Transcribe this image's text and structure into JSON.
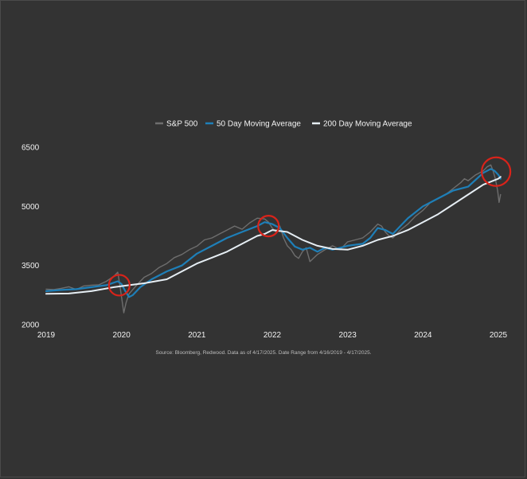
{
  "chart_data": {
    "type": "line",
    "title": "",
    "xlabel": "",
    "ylabel": "",
    "xlim": [
      2019,
      2025.05
    ],
    "ylim": [
      2000,
      6500
    ],
    "x_ticks": [
      "2019",
      "2020",
      "2021",
      "2022",
      "2023",
      "2024",
      "2025"
    ],
    "y_ticks": [
      "2000",
      "3500",
      "5000",
      "6500"
    ],
    "grid": false,
    "legend_position": "top",
    "source_note": "Source: Bloomberg, Redwood. Data as of 4/17/2025. Date Range from 4/16/2019 - 4/17/2025.",
    "series": [
      {
        "name": "S&P 500",
        "color": "#6e6e6e",
        "points": [
          [
            2019.0,
            2900
          ],
          [
            2019.1,
            2890
          ],
          [
            2019.2,
            2920
          ],
          [
            2019.3,
            2960
          ],
          [
            2019.4,
            2890
          ],
          [
            2019.5,
            2980
          ],
          [
            2019.6,
            3000
          ],
          [
            2019.7,
            3010
          ],
          [
            2019.8,
            3100
          ],
          [
            2019.9,
            3230
          ],
          [
            2019.95,
            3330
          ],
          [
            2019.97,
            3100
          ],
          [
            2020.0,
            2700
          ],
          [
            2020.03,
            2300
          ],
          [
            2020.06,
            2550
          ],
          [
            2020.1,
            2780
          ],
          [
            2020.2,
            3000
          ],
          [
            2020.3,
            3200
          ],
          [
            2020.4,
            3300
          ],
          [
            2020.5,
            3450
          ],
          [
            2020.6,
            3550
          ],
          [
            2020.7,
            3700
          ],
          [
            2020.8,
            3780
          ],
          [
            2020.9,
            3900
          ],
          [
            2021.0,
            3990
          ],
          [
            2021.1,
            4150
          ],
          [
            2021.2,
            4200
          ],
          [
            2021.3,
            4300
          ],
          [
            2021.4,
            4400
          ],
          [
            2021.5,
            4500
          ],
          [
            2021.6,
            4420
          ],
          [
            2021.7,
            4580
          ],
          [
            2021.8,
            4700
          ],
          [
            2021.9,
            4680
          ],
          [
            2021.95,
            4600
          ],
          [
            2022.0,
            4450
          ],
          [
            2022.05,
            4350
          ],
          [
            2022.1,
            4500
          ],
          [
            2022.15,
            4200
          ],
          [
            2022.2,
            4000
          ],
          [
            2022.25,
            3900
          ],
          [
            2022.3,
            3750
          ],
          [
            2022.35,
            3680
          ],
          [
            2022.4,
            3850
          ],
          [
            2022.45,
            3950
          ],
          [
            2022.5,
            3600
          ],
          [
            2022.6,
            3780
          ],
          [
            2022.7,
            3900
          ],
          [
            2022.8,
            4000
          ],
          [
            2022.9,
            3900
          ],
          [
            2023.0,
            4100
          ],
          [
            2023.1,
            4150
          ],
          [
            2023.2,
            4200
          ],
          [
            2023.3,
            4350
          ],
          [
            2023.4,
            4550
          ],
          [
            2023.45,
            4500
          ],
          [
            2023.5,
            4350
          ],
          [
            2023.55,
            4250
          ],
          [
            2023.6,
            4200
          ],
          [
            2023.7,
            4400
          ],
          [
            2023.8,
            4550
          ],
          [
            2023.9,
            4750
          ],
          [
            2024.0,
            4900
          ],
          [
            2024.1,
            5100
          ],
          [
            2024.2,
            5200
          ],
          [
            2024.3,
            5300
          ],
          [
            2024.4,
            5450
          ],
          [
            2024.5,
            5600
          ],
          [
            2024.55,
            5700
          ],
          [
            2024.6,
            5650
          ],
          [
            2024.7,
            5800
          ],
          [
            2024.8,
            5900
          ],
          [
            2024.85,
            6000
          ],
          [
            2024.9,
            6050
          ],
          [
            2024.93,
            5900
          ],
          [
            2024.96,
            5700
          ],
          [
            2024.99,
            5400
          ],
          [
            2025.01,
            5100
          ],
          [
            2025.03,
            5300
          ]
        ]
      },
      {
        "name": "50 Day Moving Average",
        "color": "#1e7fb8",
        "points": [
          [
            2019.0,
            2850
          ],
          [
            2019.2,
            2880
          ],
          [
            2019.4,
            2900
          ],
          [
            2019.6,
            2950
          ],
          [
            2019.8,
            3000
          ],
          [
            2019.95,
            3100
          ],
          [
            2020.0,
            3030
          ],
          [
            2020.05,
            2850
          ],
          [
            2020.1,
            2700
          ],
          [
            2020.15,
            2750
          ],
          [
            2020.25,
            2950
          ],
          [
            2020.4,
            3150
          ],
          [
            2020.6,
            3350
          ],
          [
            2020.8,
            3500
          ],
          [
            2021.0,
            3800
          ],
          [
            2021.2,
            4000
          ],
          [
            2021.4,
            4200
          ],
          [
            2021.6,
            4350
          ],
          [
            2021.8,
            4500
          ],
          [
            2021.9,
            4600
          ],
          [
            2022.0,
            4550
          ],
          [
            2022.1,
            4450
          ],
          [
            2022.2,
            4200
          ],
          [
            2022.3,
            3980
          ],
          [
            2022.4,
            3900
          ],
          [
            2022.5,
            3950
          ],
          [
            2022.6,
            3850
          ],
          [
            2022.7,
            3950
          ],
          [
            2022.8,
            3900
          ],
          [
            2022.9,
            3950
          ],
          [
            2023.0,
            4000
          ],
          [
            2023.2,
            4050
          ],
          [
            2023.3,
            4200
          ],
          [
            2023.4,
            4450
          ],
          [
            2023.5,
            4400
          ],
          [
            2023.6,
            4300
          ],
          [
            2023.7,
            4500
          ],
          [
            2023.8,
            4700
          ],
          [
            2023.9,
            4850
          ],
          [
            2024.0,
            5000
          ],
          [
            2024.2,
            5200
          ],
          [
            2024.4,
            5400
          ],
          [
            2024.6,
            5500
          ],
          [
            2024.8,
            5850
          ],
          [
            2024.9,
            5950
          ],
          [
            2024.95,
            5900
          ],
          [
            2025.0,
            5800
          ],
          [
            2025.03,
            5700
          ]
        ]
      },
      {
        "name": "200 Day Moving Average",
        "color": "#e6eef4",
        "points": [
          [
            2019.0,
            2780
          ],
          [
            2019.3,
            2790
          ],
          [
            2019.6,
            2850
          ],
          [
            2019.9,
            2950
          ],
          [
            2020.1,
            3000
          ],
          [
            2020.3,
            3050
          ],
          [
            2020.6,
            3150
          ],
          [
            2020.8,
            3350
          ],
          [
            2021.0,
            3550
          ],
          [
            2021.2,
            3700
          ],
          [
            2021.4,
            3850
          ],
          [
            2021.6,
            4050
          ],
          [
            2021.8,
            4250
          ],
          [
            2021.9,
            4300
          ],
          [
            2022.0,
            4400
          ],
          [
            2022.2,
            4350
          ],
          [
            2022.4,
            4150
          ],
          [
            2022.6,
            4000
          ],
          [
            2022.8,
            3920
          ],
          [
            2023.0,
            3900
          ],
          [
            2023.2,
            4000
          ],
          [
            2023.4,
            4150
          ],
          [
            2023.6,
            4250
          ],
          [
            2023.8,
            4400
          ],
          [
            2024.0,
            4600
          ],
          [
            2024.2,
            4800
          ],
          [
            2024.4,
            5050
          ],
          [
            2024.6,
            5300
          ],
          [
            2024.8,
            5550
          ],
          [
            2025.0,
            5700
          ],
          [
            2025.03,
            5750
          ]
        ]
      }
    ],
    "annotations": [
      {
        "type": "circle",
        "x": 2019.97,
        "y": 3000,
        "color": "#d9231a"
      },
      {
        "type": "circle",
        "x": 2021.95,
        "y": 4500,
        "color": "#d9231a"
      },
      {
        "type": "circle",
        "x": 2024.97,
        "y": 5880,
        "color": "#d9231a"
      }
    ]
  }
}
